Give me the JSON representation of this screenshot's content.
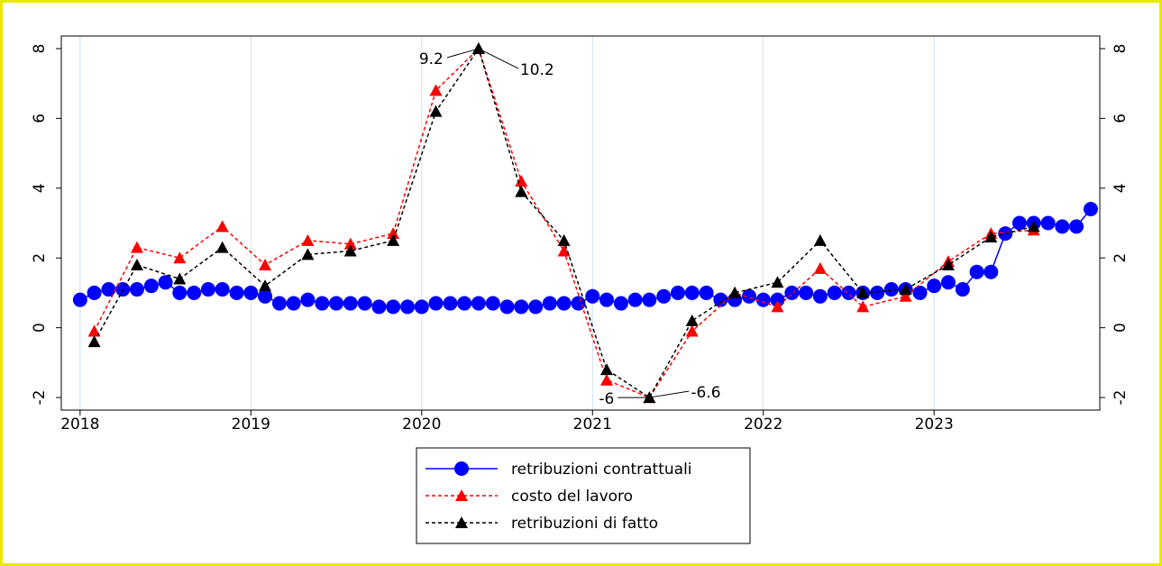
{
  "chart_data": {
    "type": "line",
    "xlim": [
      2017.89,
      2023.97
    ],
    "xticks": [
      2018,
      2019,
      2020,
      2021,
      2022,
      2023
    ],
    "ylim": [
      -2.36,
      8.36
    ],
    "yticks": [
      -2,
      0,
      2,
      4,
      6,
      8
    ],
    "grid": true,
    "series": [
      {
        "name": "retribuzioni contrattuali",
        "color": "#0000ff",
        "marker": "circle",
        "dashed": false,
        "x": [
          2018.0,
          2018.083,
          2018.167,
          2018.25,
          2018.333,
          2018.417,
          2018.5,
          2018.583,
          2018.667,
          2018.75,
          2018.833,
          2018.917,
          2019.0,
          2019.083,
          2019.167,
          2019.25,
          2019.333,
          2019.417,
          2019.5,
          2019.583,
          2019.667,
          2019.75,
          2019.833,
          2019.917,
          2020.0,
          2020.083,
          2020.167,
          2020.25,
          2020.333,
          2020.417,
          2020.5,
          2020.583,
          2020.667,
          2020.75,
          2020.833,
          2020.917,
          2021.0,
          2021.083,
          2021.167,
          2021.25,
          2021.333,
          2021.417,
          2021.5,
          2021.583,
          2021.667,
          2021.75,
          2021.833,
          2021.917,
          2022.0,
          2022.083,
          2022.167,
          2022.25,
          2022.333,
          2022.417,
          2022.5,
          2022.583,
          2022.667,
          2022.75,
          2022.833,
          2022.917,
          2023.0,
          2023.083,
          2023.167,
          2023.25,
          2023.333,
          2023.417,
          2023.5,
          2023.583,
          2023.667,
          2023.75,
          2023.833,
          2023.917
        ],
        "values": [
          0.8,
          1.0,
          1.1,
          1.1,
          1.1,
          1.2,
          1.3,
          1.0,
          1.0,
          1.1,
          1.1,
          1.0,
          1.0,
          0.9,
          0.7,
          0.7,
          0.8,
          0.7,
          0.7,
          0.7,
          0.7,
          0.6,
          0.6,
          0.6,
          0.6,
          0.7,
          0.7,
          0.7,
          0.7,
          0.7,
          0.6,
          0.6,
          0.6,
          0.7,
          0.7,
          0.7,
          0.9,
          0.8,
          0.7,
          0.8,
          0.8,
          0.9,
          1.0,
          1.0,
          1.0,
          0.8,
          0.8,
          0.9,
          0.8,
          0.8,
          1.0,
          1.0,
          0.9,
          1.0,
          1.0,
          1.0,
          1.0,
          1.1,
          1.1,
          1.0,
          1.2,
          1.3,
          1.1,
          1.6,
          1.6,
          2.7,
          3.0,
          3.0,
          3.0,
          2.9,
          2.9,
          3.4
        ]
      },
      {
        "name": "costo del lavoro",
        "color": "#ff0000",
        "marker": "triangle",
        "dashed": true,
        "x": [
          2018.083,
          2018.333,
          2018.583,
          2018.833,
          2019.083,
          2019.333,
          2019.583,
          2019.833,
          2020.083,
          2020.333,
          2020.583,
          2020.833,
          2021.083,
          2021.333,
          2021.583,
          2021.833,
          2022.083,
          2022.333,
          2022.583,
          2022.833,
          2023.083,
          2023.333,
          2023.583
        ],
        "values": [
          -0.1,
          2.3,
          2.0,
          2.9,
          1.8,
          2.5,
          2.4,
          2.7,
          6.8,
          10.2,
          4.2,
          2.2,
          -1.5,
          -6.6,
          -0.1,
          1.0,
          0.6,
          1.7,
          0.6,
          0.9,
          1.9,
          2.7,
          2.8
        ],
        "value_labels": [
          null,
          null,
          null,
          null,
          null,
          null,
          null,
          null,
          null,
          "10.2",
          null,
          null,
          null,
          "-6.6",
          null,
          null,
          null,
          null,
          null,
          null,
          null,
          null,
          null
        ]
      },
      {
        "name": "retribuzioni di fatto",
        "color": "#000000",
        "marker": "triangle",
        "dashed": true,
        "x": [
          2018.083,
          2018.333,
          2018.583,
          2018.833,
          2019.083,
          2019.333,
          2019.583,
          2019.833,
          2020.083,
          2020.333,
          2020.583,
          2020.833,
          2021.083,
          2021.333,
          2021.583,
          2021.833,
          2022.083,
          2022.333,
          2022.583,
          2022.833,
          2023.083,
          2023.333,
          2023.583
        ],
        "values": [
          -0.4,
          1.8,
          1.4,
          2.3,
          1.2,
          2.1,
          2.2,
          2.5,
          6.2,
          9.2,
          3.9,
          2.5,
          -1.2,
          -6,
          0.2,
          1.0,
          1.3,
          2.5,
          1.0,
          1.1,
          1.8,
          2.6,
          2.9
        ],
        "value_labels": [
          null,
          null,
          null,
          null,
          null,
          null,
          null,
          null,
          null,
          "9.2",
          null,
          null,
          null,
          "-6",
          null,
          null,
          null,
          null,
          null,
          null,
          null,
          null,
          null
        ]
      }
    ]
  }
}
